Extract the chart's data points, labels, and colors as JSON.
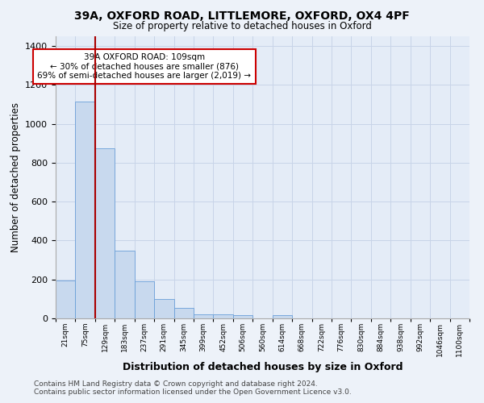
{
  "title_line1": "39A, OXFORD ROAD, LITTLEMORE, OXFORD, OX4 4PF",
  "title_line2": "Size of property relative to detached houses in Oxford",
  "xlabel": "Distribution of detached houses by size in Oxford",
  "ylabel": "Number of detached properties",
  "bin_labels": [
    "21sqm",
    "75sqm",
    "129sqm",
    "183sqm",
    "237sqm",
    "291sqm",
    "345sqm",
    "399sqm",
    "452sqm",
    "506sqm",
    "560sqm",
    "614sqm",
    "668sqm",
    "722sqm",
    "776sqm",
    "830sqm",
    "884sqm",
    "938sqm",
    "992sqm",
    "1046sqm",
    "1100sqm"
  ],
  "bar_heights": [
    195,
    1115,
    875,
    350,
    190,
    100,
    52,
    22,
    22,
    15,
    0,
    15,
    0,
    0,
    0,
    0,
    0,
    0,
    0,
    0,
    0
  ],
  "bar_color": "#c8d9ee",
  "bar_edge_color": "#6a9fd8",
  "grid_color": "#c8d4e8",
  "background_color": "#e4ecf7",
  "fig_background_color": "#edf2f9",
  "annotation_text": "39A OXFORD ROAD: 109sqm\n← 30% of detached houses are smaller (876)\n69% of semi-detached houses are larger (2,019) →",
  "annotation_box_color": "#ffffff",
  "annotation_box_edge": "#cc0000",
  "vline_x": 2.0,
  "vline_color": "#aa0000",
  "ylim": [
    0,
    1450
  ],
  "yticks": [
    0,
    200,
    400,
    600,
    800,
    1000,
    1200,
    1400
  ],
  "footnote1": "Contains HM Land Registry data © Crown copyright and database right 2024.",
  "footnote2": "Contains public sector information licensed under the Open Government Licence v3.0."
}
